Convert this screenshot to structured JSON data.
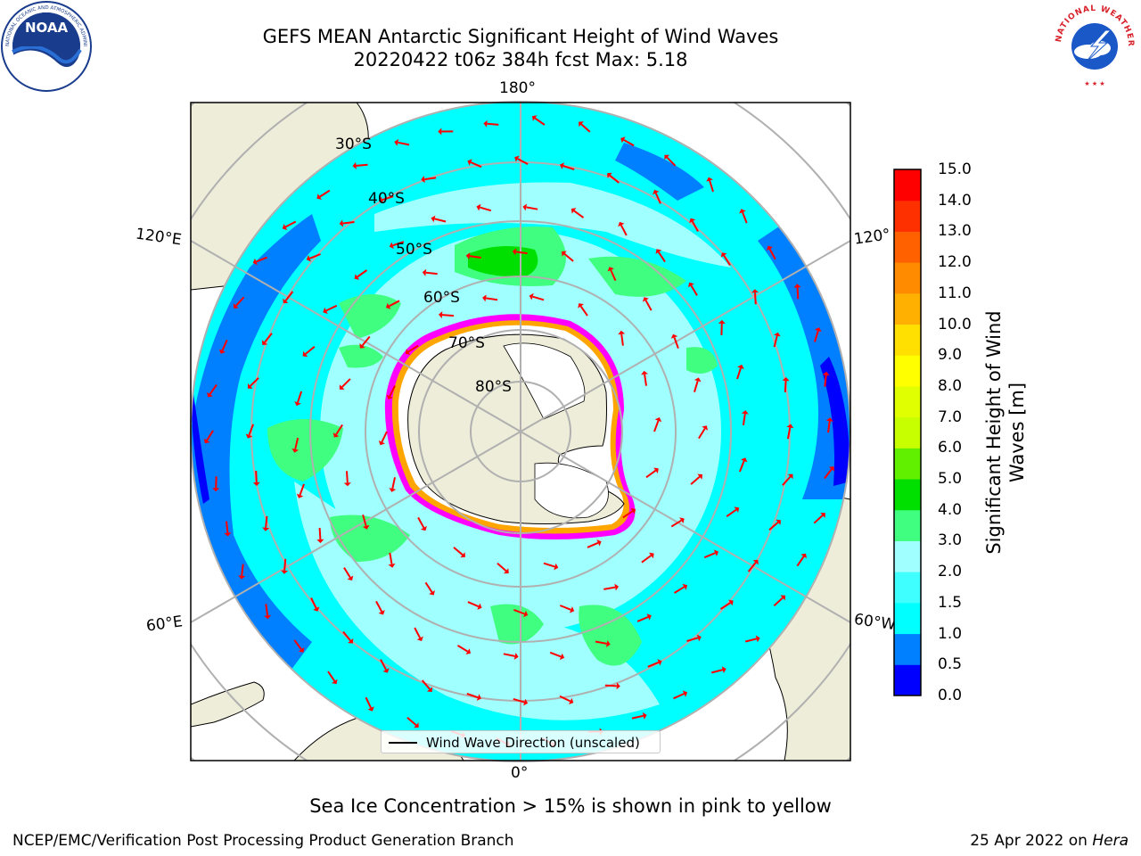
{
  "header": {
    "title_line1": "GEFS MEAN Antarctic Significant Height of Wind Waves",
    "title_line2": "20220422 t06z 384h fcst   Max: 5.18"
  },
  "logos": {
    "left": "noaa-logo",
    "right": "national-weather-service-logo",
    "left_text": "NOAA",
    "left_ring_text": "NATIONAL OCEANIC AND ATMOSPHERIC ADMINISTRATION · U.S. DEPARTMENT OF COMMERCE",
    "right_ring_text": "NATIONAL WEATHER SERVICE"
  },
  "map": {
    "projection": "south-polar-stereographic",
    "longitude_labels": [
      "180°",
      "120°E",
      "120°",
      "60°E",
      "60°W",
      "0°"
    ],
    "latitude_labels": [
      "30°S",
      "40°S",
      "50°S",
      "60°S",
      "70°S",
      "80°S"
    ],
    "legend_label": "Wind Wave Direction (unscaled)",
    "colors": {
      "land": "#eeedd9",
      "ice_shelf": "#ffffff",
      "sea_ice_edge": [
        "#ff00ff",
        "#ffa500",
        "#ffff00"
      ],
      "arrow": "#ff0000",
      "grid": "#b0b0b0"
    }
  },
  "colorbar": {
    "label": "Significant Height of Wind Waves [m]",
    "ticks": [
      "15.0",
      "14.0",
      "13.0",
      "12.0",
      "11.0",
      "10.0",
      "9.0",
      "8.0",
      "7.0",
      "6.0",
      "5.0",
      "4.0",
      "3.0",
      "2.0",
      "1.5",
      "1.0",
      "0.5",
      "0.0"
    ],
    "bands": [
      {
        "from": 0.0,
        "to": 0.5,
        "color": "#0000ff"
      },
      {
        "from": 0.5,
        "to": 1.0,
        "color": "#007fff"
      },
      {
        "from": 1.0,
        "to": 1.5,
        "color": "#00ffff"
      },
      {
        "from": 1.5,
        "to": 2.0,
        "color": "#40ffff"
      },
      {
        "from": 2.0,
        "to": 3.0,
        "color": "#a0ffff"
      },
      {
        "from": 3.0,
        "to": 4.0,
        "color": "#40ff80"
      },
      {
        "from": 4.0,
        "to": 5.0,
        "color": "#00e000"
      },
      {
        "from": 5.0,
        "to": 6.0,
        "color": "#60f000"
      },
      {
        "from": 6.0,
        "to": 7.0,
        "color": "#c8ff00"
      },
      {
        "from": 7.0,
        "to": 8.0,
        "color": "#e0ff00"
      },
      {
        "from": 8.0,
        "to": 9.0,
        "color": "#ffff00"
      },
      {
        "from": 9.0,
        "to": 10.0,
        "color": "#ffe000"
      },
      {
        "from": 10.0,
        "to": 11.0,
        "color": "#ffb000"
      },
      {
        "from": 11.0,
        "to": 12.0,
        "color": "#ff8c00"
      },
      {
        "from": 12.0,
        "to": 13.0,
        "color": "#ff6000"
      },
      {
        "from": 13.0,
        "to": 14.0,
        "color": "#ff3000"
      },
      {
        "from": 14.0,
        "to": 15.0,
        "color": "#ff0000"
      }
    ]
  },
  "note": "Sea Ice Concentration > 15% is shown in pink to yellow",
  "footer": {
    "left": "NCEP/EMC/Verification Post Processing Product Generation Branch",
    "right_date": "25 Apr 2022 on ",
    "right_host": "Hera"
  }
}
